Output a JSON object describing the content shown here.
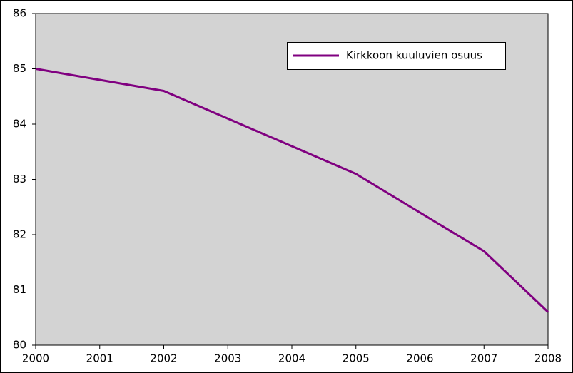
{
  "chart_data": {
    "type": "line",
    "x": [
      2000,
      2001,
      2002,
      2003,
      2004,
      2005,
      2006,
      2007,
      2008
    ],
    "series": [
      {
        "name": "Kirkkoon kuuluvien osuus",
        "color": "#800080",
        "values": [
          85.0,
          84.8,
          84.6,
          84.1,
          83.6,
          83.1,
          82.4,
          81.7,
          80.6
        ]
      }
    ],
    "xlim": [
      2000,
      2008
    ],
    "xticks": [
      2000,
      2001,
      2002,
      2003,
      2004,
      2005,
      2006,
      2007,
      2008
    ],
    "ylim": [
      80,
      86
    ],
    "yticks": [
      80,
      81,
      82,
      83,
      84,
      85,
      86
    ],
    "plot_background": "#d3d3d3",
    "legend": "upper right"
  }
}
